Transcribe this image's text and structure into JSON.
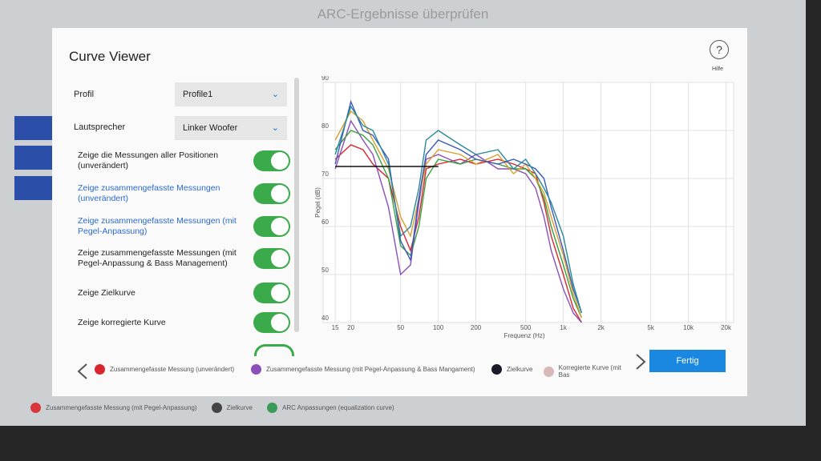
{
  "background": {
    "title": "ARC-Ergebnisse überprüfen",
    "legend": [
      {
        "label": "Zusammengefasste Messung (mit Pegel-Anpassung)",
        "color": "#d9363e"
      },
      {
        "label": "Zielkurve",
        "color": "#444444"
      },
      {
        "label": "ARC Anpassungen (equalization curve)",
        "color": "#3a9a5a"
      }
    ]
  },
  "dialog": {
    "title": "Curve Viewer",
    "help_icon": "?",
    "help": "Hilfe",
    "settings": [
      {
        "label": "Profil",
        "value": "Profile1"
      },
      {
        "label": "Lautsprecher",
        "value": "Linker Woofer"
      }
    ],
    "toggles": [
      {
        "label": "Zeige die Messungen aller Positionen (unverändert)",
        "on": true,
        "link": false
      },
      {
        "label": "Zeige zusammengefasste Messungen (unverändert)",
        "on": true,
        "link": true
      },
      {
        "label": "Zeige zusammengefasste Messungen (mit Pegel-Anpassung)",
        "on": true,
        "link": true
      },
      {
        "label": "Zeige zusammengefasste Messungen (mit Pegel-Anpassung & Bass Management)",
        "on": true,
        "link": false
      },
      {
        "label": "Zeige Zielkurve",
        "on": true,
        "link": false
      },
      {
        "label": "Zeige korregierte Kurve",
        "on": true,
        "link": false
      }
    ],
    "legend": [
      {
        "label": "Zusammengefasste Messung (unverändert)",
        "color": "#d9262e"
      },
      {
        "label": "Zusammengefasste Messung (mit Pegel-Anpassung & Bass Mangament)",
        "color": "#8a4fb8"
      },
      {
        "label": "Zielkurve",
        "color": "#1a1a2a"
      },
      {
        "label": "Korregierte Kurve (mit Bas",
        "color": "#d8b8b8"
      }
    ],
    "button": "Fertig"
  },
  "chart_data": {
    "type": "line",
    "y_label": "Pegel (dB)",
    "x_label": "Frequenz (Hz)",
    "log_x": true,
    "grid": true,
    "xlim": [
      12,
      23000
    ],
    "ylim": [
      40,
      90
    ],
    "xticks": [
      15,
      20,
      50,
      100,
      200,
      500,
      {
        "value": 1000,
        "label": "1k"
      },
      {
        "value": 2000,
        "label": "2k"
      },
      {
        "value": 5000,
        "label": "5k"
      },
      {
        "value": 10000,
        "label": "10k"
      },
      {
        "value": 20000,
        "label": "20k"
      }
    ],
    "yticks": [
      40,
      50,
      60,
      70,
      80,
      90
    ],
    "x": [
      15,
      20,
      25,
      30,
      40,
      50,
      60,
      70,
      80,
      100,
      150,
      200,
      300,
      400,
      500,
      600,
      700,
      800,
      1000,
      1200,
      1400
    ],
    "series": [
      {
        "color": "#d9262e",
        "values": [
          74,
          77,
          76,
          73,
          70,
          60,
          55,
          62,
          72,
          73,
          74,
          73,
          74,
          73,
          72,
          71,
          65,
          58,
          50,
          43,
          40
        ]
      },
      {
        "color": "#8a4fb8",
        "values": [
          72,
          82,
          78,
          75,
          64,
          50,
          52,
          65,
          74,
          75,
          73,
          75,
          72,
          72,
          71,
          68,
          62,
          55,
          47,
          42,
          40
        ]
      },
      {
        "color": "#3aa040",
        "values": [
          76,
          80,
          79,
          77,
          70,
          56,
          54,
          60,
          70,
          74,
          73,
          74,
          73,
          72,
          72,
          70,
          66,
          60,
          52,
          45,
          41
        ]
      },
      {
        "color": "#d9a030",
        "values": [
          78,
          84,
          82,
          78,
          72,
          62,
          58,
          66,
          73,
          76,
          75,
          73,
          75,
          71,
          73,
          70,
          67,
          62,
          54,
          46,
          41
        ]
      },
      {
        "color": "#3a5ab8",
        "values": [
          73,
          86,
          80,
          79,
          74,
          57,
          53,
          66,
          75,
          78,
          76,
          74,
          73,
          74,
          73,
          72,
          70,
          64,
          55,
          47,
          42
        ]
      },
      {
        "color": "#2a8a9a",
        "values": [
          75,
          85,
          81,
          80,
          73,
          58,
          60,
          68,
          78,
          80,
          77,
          75,
          76,
          72,
          74,
          71,
          68,
          65,
          58,
          48,
          42
        ]
      },
      {
        "color": "#111111",
        "values": [
          72.5,
          72.5,
          72.5,
          72.5,
          72.5,
          72.5,
          72.5,
          72.5,
          72.5,
          72.5,
          null,
          null,
          null,
          null,
          null,
          null,
          null,
          null,
          null,
          null,
          null
        ]
      }
    ]
  }
}
